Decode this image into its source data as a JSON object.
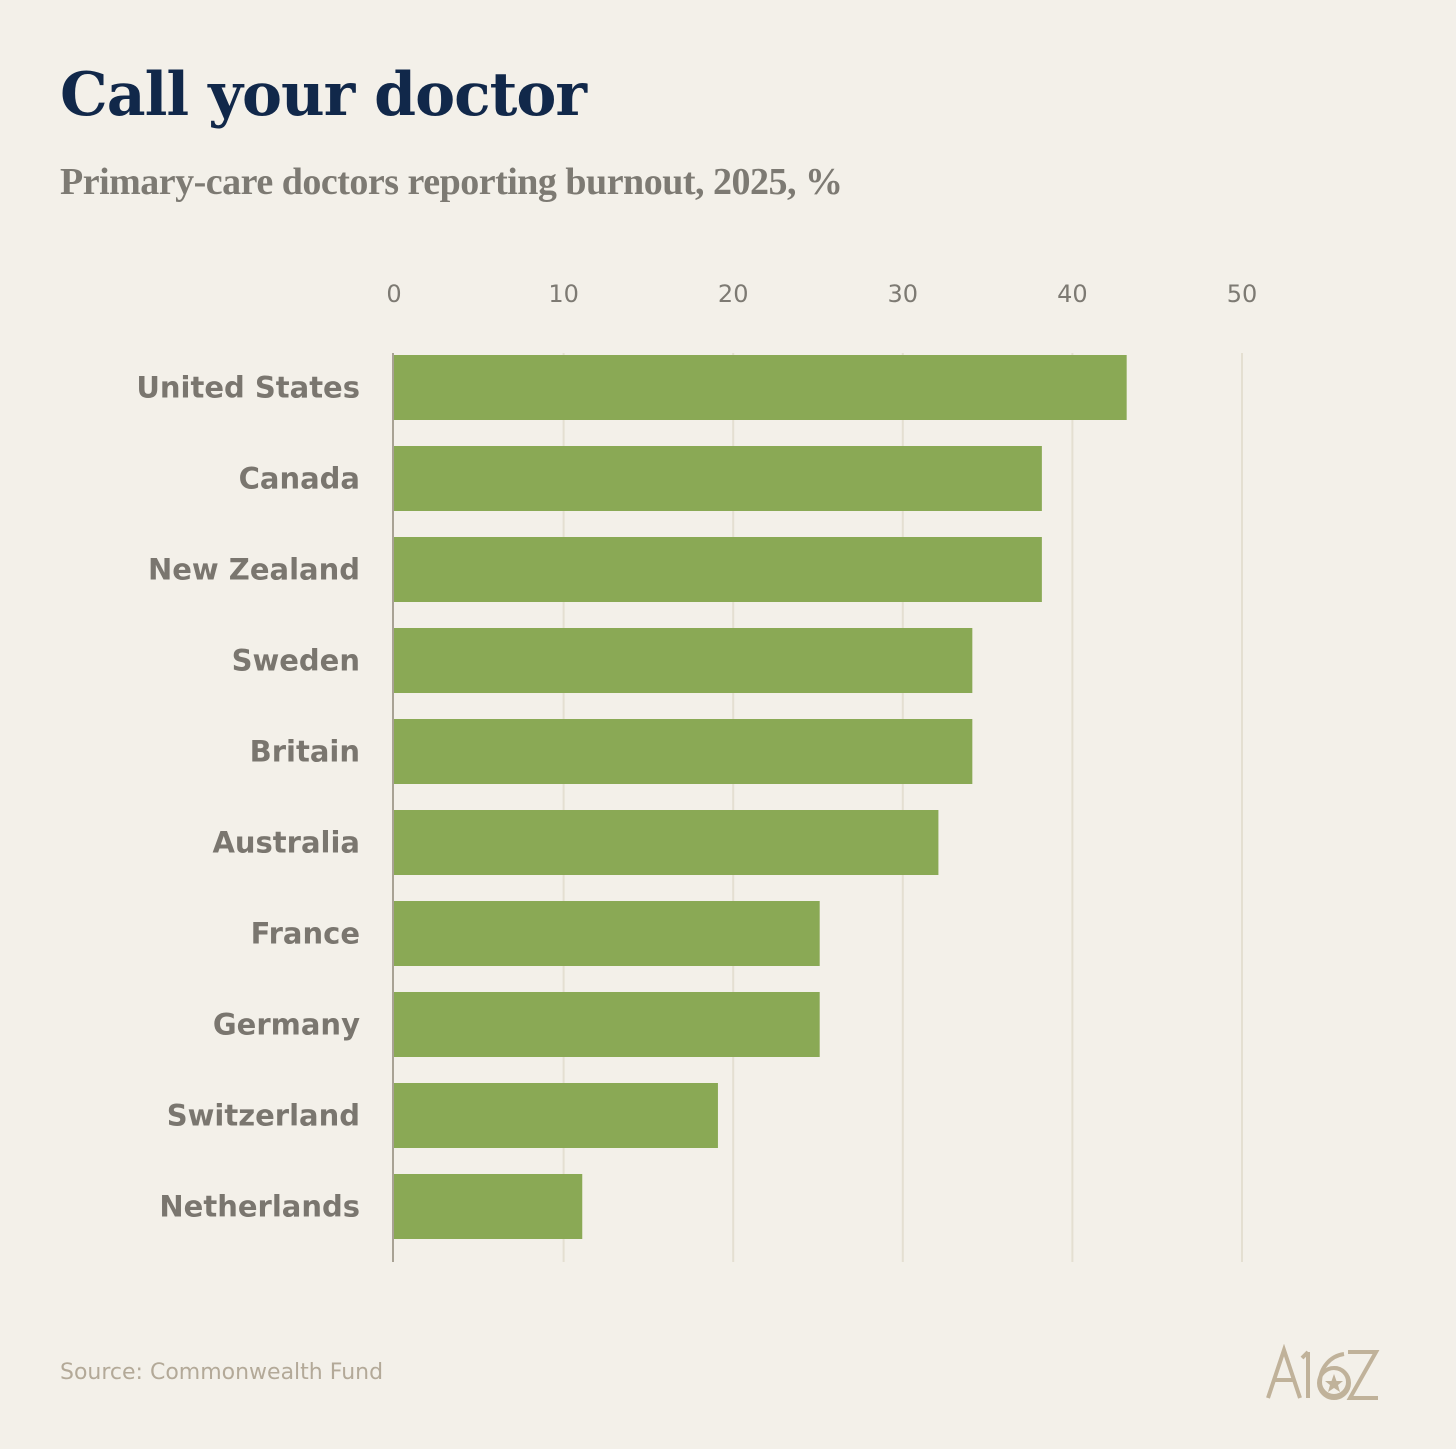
{
  "title": "Call your doctor",
  "subtitle": "Primary-care doctors reporting burnout, 2025, %",
  "source": "Source: Commonwealth Fund",
  "logo_text": "A16Z",
  "colors": {
    "background": "#f3f0e9",
    "title": "#11284a",
    "subtitle": "#7d7a73",
    "label": "#7a766f",
    "bar": "#8aa955",
    "grid": "#e4dfd1",
    "source": "#b3a998",
    "logo": "#c0b29a"
  },
  "chart_data": {
    "type": "bar",
    "orientation": "horizontal",
    "categories": [
      "United States",
      "Canada",
      "New Zealand",
      "Sweden",
      "Britain",
      "Australia",
      "France",
      "Germany",
      "Switzerland",
      "Netherlands"
    ],
    "values": [
      43.2,
      38.2,
      38.2,
      34.1,
      34.1,
      32.1,
      25.1,
      25.1,
      19.1,
      11.1
    ],
    "xlim": [
      0,
      50
    ],
    "xticks": [
      "0",
      "10",
      "20",
      "30",
      "40",
      "50"
    ],
    "xtick_values": [
      0,
      10,
      20,
      30,
      40,
      50
    ],
    "xaxis_position": "top",
    "grid": true,
    "legend": "none"
  }
}
